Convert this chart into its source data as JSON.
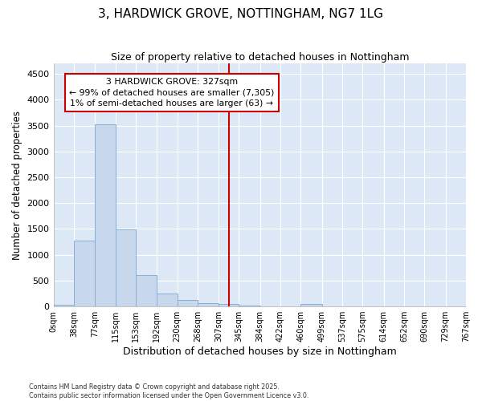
{
  "title": "3, HARDWICK GROVE, NOTTINGHAM, NG7 1LG",
  "subtitle": "Size of property relative to detached houses in Nottingham",
  "xlabel": "Distribution of detached houses by size in Nottingham",
  "ylabel": "Number of detached properties",
  "bar_color": "#c8d8ec",
  "bar_edge_color": "#8aaed4",
  "plot_bg_color": "#dce8f5",
  "fig_bg_color": "#ffffff",
  "grid_color": "#ffffff",
  "vline_x": 327,
  "vline_color": "#cc0000",
  "annotation_text": "3 HARDWICK GROVE: 327sqm\n← 99% of detached houses are smaller (7,305)\n1% of semi-detached houses are larger (63) →",
  "annotation_box_color": "#cc0000",
  "bin_edges": [
    0,
    38,
    77,
    115,
    153,
    192,
    230,
    268,
    307,
    345,
    384,
    422,
    460,
    499,
    537,
    575,
    614,
    652,
    690,
    729,
    767
  ],
  "bar_heights": [
    30,
    1280,
    3530,
    1490,
    600,
    255,
    130,
    70,
    50,
    10,
    5,
    0,
    50,
    0,
    0,
    0,
    0,
    0,
    0,
    0
  ],
  "ylim": [
    0,
    4700
  ],
  "yticks": [
    0,
    500,
    1000,
    1500,
    2000,
    2500,
    3000,
    3500,
    4000,
    4500
  ],
  "footnote": "Contains HM Land Registry data © Crown copyright and database right 2025.\nContains public sector information licensed under the Open Government Licence v3.0."
}
